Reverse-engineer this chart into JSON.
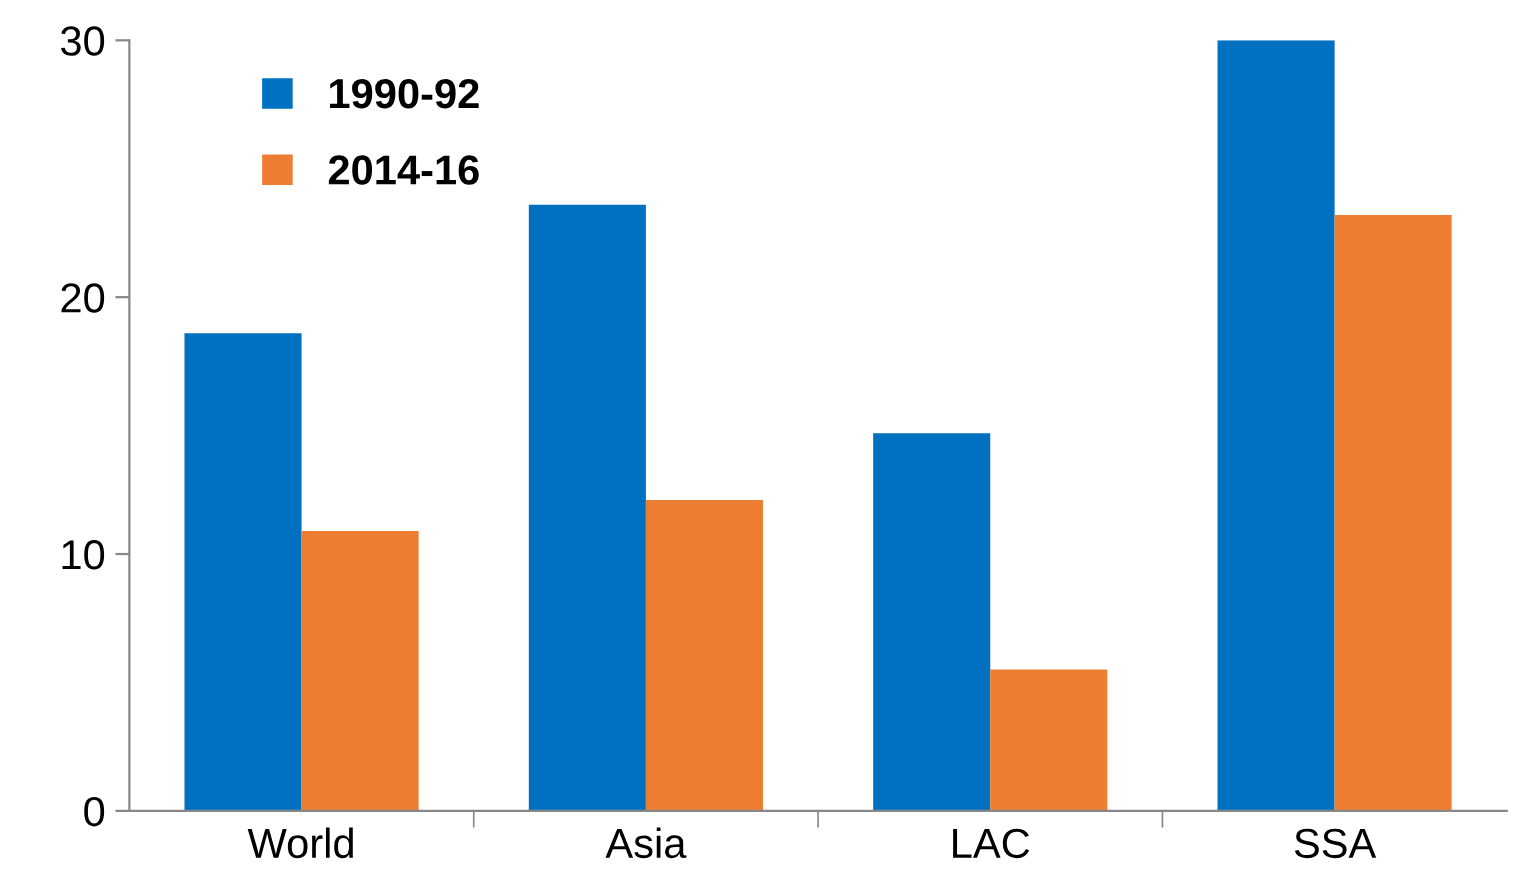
{
  "chart_data": {
    "type": "bar",
    "categories": [
      "World",
      "Asia",
      "LAC",
      "SSA"
    ],
    "series": [
      {
        "name": "1990-92",
        "color": "#0070c0",
        "values": [
          18.6,
          23.6,
          14.7,
          30.0
        ]
      },
      {
        "name": "2014-16",
        "color": "#ed7d31",
        "values": [
          10.9,
          12.1,
          5.5,
          23.2
        ]
      }
    ],
    "ylim": [
      0,
      30
    ],
    "yticks": [
      0,
      10,
      20,
      30
    ],
    "grid": false,
    "legend": "top left"
  }
}
